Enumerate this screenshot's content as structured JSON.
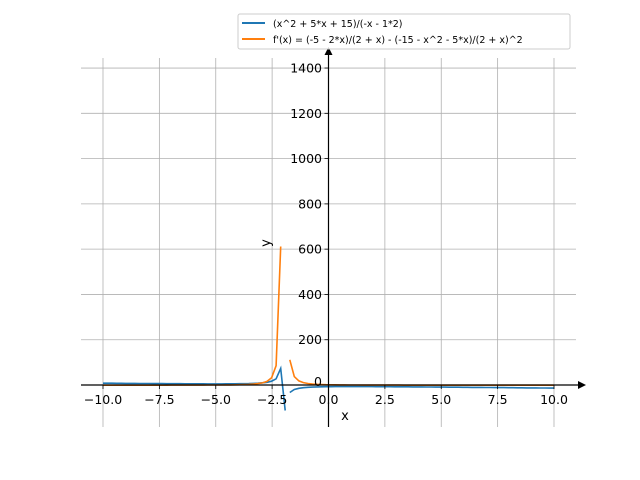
{
  "chart_data": {
    "type": "line",
    "title": "",
    "xlabel": "x",
    "ylabel": "y",
    "xlim": [
      -11,
      11
    ],
    "ylim": [
      -190,
      1480
    ],
    "grid": true,
    "legend_placement": "top-right",
    "x_ticks": [
      -10.0,
      -7.5,
      -5.0,
      -2.5,
      0.0,
      2.5,
      5.0,
      7.5,
      10.0
    ],
    "x_tick_labels": [
      "−10.0",
      "−7.5",
      "−5.0",
      "−2.5",
      "0.0",
      "2.5",
      "5.0",
      "7.5",
      "10.0"
    ],
    "y_ticks": [
      0,
      200,
      400,
      600,
      800,
      1000,
      1200,
      1400
    ],
    "y_tick_labels": [
      "0",
      "200",
      "400",
      "600",
      "800",
      "1000",
      "1200",
      "1400"
    ],
    "sampling": {
      "x_start": -10,
      "x_end": 10,
      "n_points": 100
    },
    "series": [
      {
        "name": "(x^2 + 5*x + 15)/(-x - 1*2)",
        "color": "#1f77b4",
        "function": "f",
        "break_after_index": 40
      },
      {
        "name": "f'(x) = (-5 - 2*x)/(2 + x) - (-15 - x^2 - 5*x)/(2 + x)^2",
        "color": "#ff7f0e",
        "function": "df",
        "break_after_index": 39,
        "skip_index": 40
      }
    ]
  }
}
